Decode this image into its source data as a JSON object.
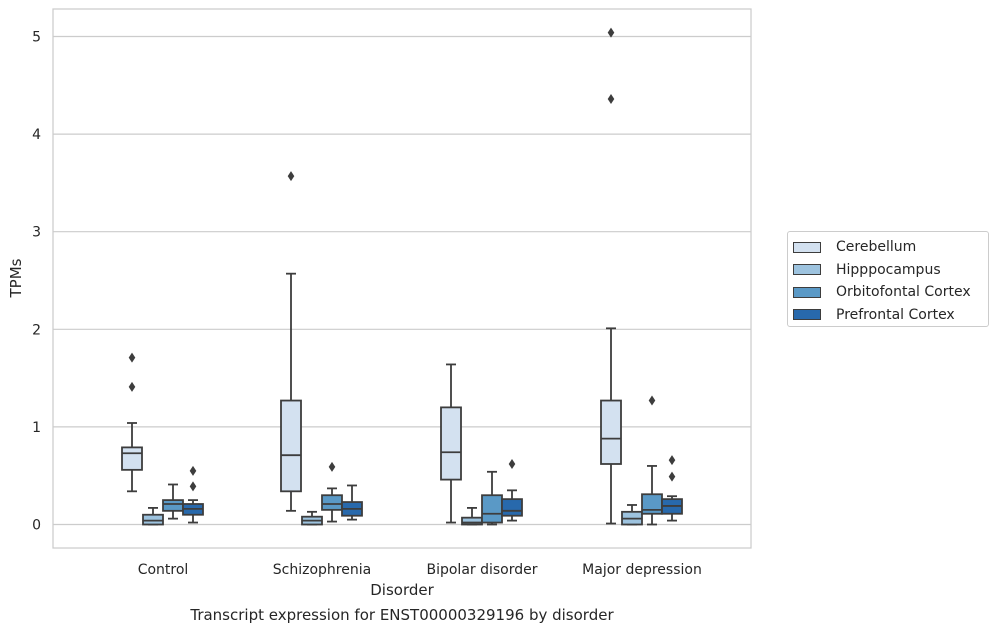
{
  "chart_data": {
    "type": "box",
    "title": "Transcript expression for ENST00000329196 by disorder",
    "xlabel": "Disorder",
    "ylabel": "TPMs",
    "ylim": [
      -0.25,
      5.28
    ],
    "yticks": [
      "0",
      "1",
      "2",
      "3",
      "4",
      "5"
    ],
    "grid": "horizontal",
    "legend_position": "right",
    "categories": [
      "Control",
      "Schizophrenia",
      "Bipolar disorder",
      "Major depression"
    ],
    "series": [
      {
        "name": "Cerebellum",
        "color": "#d3e1f0",
        "boxes": [
          {
            "whislo": 0.34,
            "q1": 0.56,
            "med": 0.73,
            "q3": 0.79,
            "whishi": 1.04,
            "fliers": [
              1.41,
              1.71
            ]
          },
          {
            "whislo": 0.14,
            "q1": 0.34,
            "med": 0.71,
            "q3": 1.27,
            "whishi": 2.57,
            "fliers": [
              3.57
            ]
          },
          {
            "whislo": 0.02,
            "q1": 0.46,
            "med": 0.74,
            "q3": 1.2,
            "whishi": 1.64,
            "fliers": []
          },
          {
            "whislo": 0.01,
            "q1": 0.62,
            "med": 0.88,
            "q3": 1.27,
            "whishi": 2.01,
            "fliers": [
              4.36,
              5.04
            ]
          }
        ]
      },
      {
        "name": "Hipppocampus",
        "color": "#9dc3df",
        "boxes": [
          {
            "whislo": 0.0,
            "q1": 0.0,
            "med": 0.04,
            "q3": 0.1,
            "whishi": 0.17,
            "fliers": []
          },
          {
            "whislo": 0.0,
            "q1": 0.0,
            "med": 0.04,
            "q3": 0.08,
            "whishi": 0.13,
            "fliers": []
          },
          {
            "whislo": 0.0,
            "q1": 0.0,
            "med": 0.02,
            "q3": 0.07,
            "whishi": 0.17,
            "fliers": []
          },
          {
            "whislo": 0.0,
            "q1": 0.0,
            "med": 0.06,
            "q3": 0.13,
            "whishi": 0.2,
            "fliers": []
          }
        ]
      },
      {
        "name": "Orbitofontal Cortex",
        "color": "#5a99c6",
        "boxes": [
          {
            "whislo": 0.06,
            "q1": 0.14,
            "med": 0.21,
            "q3": 0.25,
            "whishi": 0.41,
            "fliers": []
          },
          {
            "whislo": 0.03,
            "q1": 0.15,
            "med": 0.21,
            "q3": 0.3,
            "whishi": 0.37,
            "fliers": [
              0.59
            ]
          },
          {
            "whislo": 0.0,
            "q1": 0.02,
            "med": 0.11,
            "q3": 0.3,
            "whishi": 0.54,
            "fliers": []
          },
          {
            "whislo": 0.0,
            "q1": 0.11,
            "med": 0.15,
            "q3": 0.31,
            "whishi": 0.6,
            "fliers": [
              1.27
            ]
          }
        ]
      },
      {
        "name": "Prefrontal Cortex",
        "color": "#2869ac",
        "boxes": [
          {
            "whislo": 0.02,
            "q1": 0.1,
            "med": 0.16,
            "q3": 0.21,
            "whishi": 0.25,
            "fliers": [
              0.39,
              0.55
            ]
          },
          {
            "whislo": 0.05,
            "q1": 0.09,
            "med": 0.16,
            "q3": 0.23,
            "whishi": 0.4,
            "fliers": []
          },
          {
            "whislo": 0.04,
            "q1": 0.09,
            "med": 0.14,
            "q3": 0.26,
            "whishi": 0.35,
            "fliers": [
              0.62
            ]
          },
          {
            "whislo": 0.04,
            "q1": 0.11,
            "med": 0.19,
            "q3": 0.26,
            "whishi": 0.29,
            "fliers": [
              0.49,
              0.66
            ]
          }
        ]
      }
    ]
  }
}
